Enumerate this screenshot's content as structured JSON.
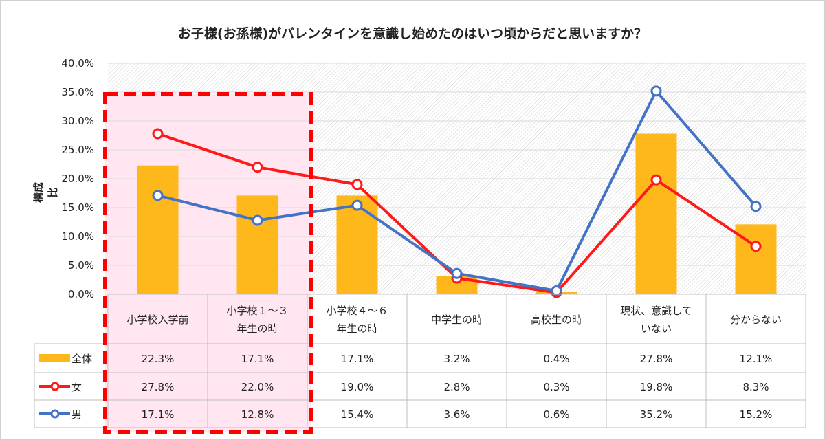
{
  "chart_data": {
    "type": "bar",
    "title": "お子様(お孫様)がバレンタインを意識し始めたのはいつ頃からだと思いますか？",
    "ylabel": "構成比",
    "ylim": [
      0,
      40
    ],
    "yticks": [
      "0.0%",
      "5.0%",
      "10.0%",
      "15.0%",
      "20.0%",
      "25.0%",
      "30.0%",
      "35.0%",
      "40.0%"
    ],
    "categories": [
      [
        "小学校入学前"
      ],
      [
        "小学校１～３",
        "年生の時"
      ],
      [
        "小学校４～６",
        "年生の時"
      ],
      [
        "中学生の時"
      ],
      [
        "高校生の時"
      ],
      [
        "現状、意識して",
        "いない"
      ],
      [
        "分からない"
      ]
    ],
    "series": [
      {
        "name": "全体",
        "kind": "bar",
        "color": "#FFB81C",
        "values": [
          22.3,
          17.1,
          17.1,
          3.2,
          0.4,
          27.8,
          12.1
        ],
        "labels": [
          "22.3%",
          "17.1%",
          "17.1%",
          "3.2%",
          "0.4%",
          "27.8%",
          "12.1%"
        ]
      },
      {
        "name": "女",
        "kind": "line",
        "color": "#FF1A1A",
        "values": [
          27.8,
          22.0,
          19.0,
          2.8,
          0.3,
          19.8,
          8.3
        ],
        "labels": [
          "27.8%",
          "22.0%",
          "19.0%",
          "2.8%",
          "0.3%",
          "19.8%",
          "8.3%"
        ]
      },
      {
        "name": "男",
        "kind": "line",
        "color": "#4472C4",
        "values": [
          17.1,
          12.8,
          15.4,
          3.6,
          0.6,
          35.2,
          15.2
        ],
        "labels": [
          "17.1%",
          "12.8%",
          "15.4%",
          "3.6%",
          "0.6%",
          "35.2%",
          "15.2%"
        ]
      }
    ],
    "highlight": {
      "categories": [
        0,
        1
      ],
      "color": "#FF0000",
      "fill": "#FFE6F0"
    },
    "grid": true,
    "data_table": true
  }
}
